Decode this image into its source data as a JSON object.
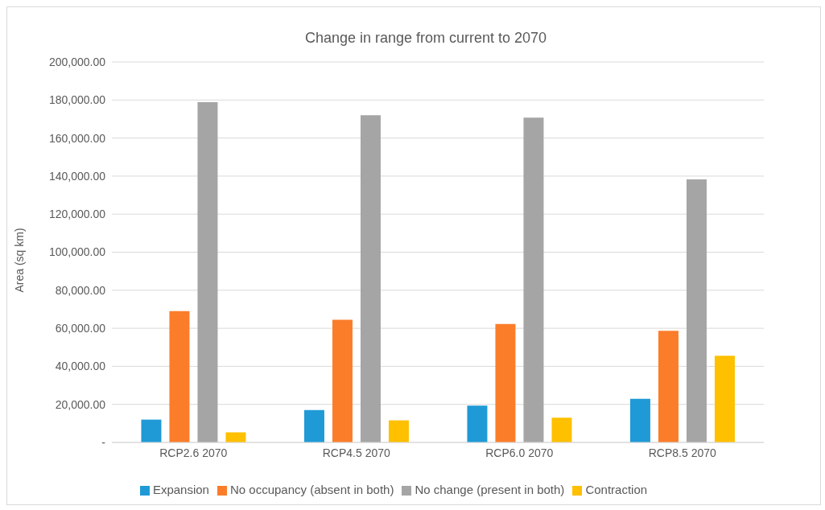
{
  "chart_data": {
    "type": "bar",
    "title": "Change in range from current to 2070",
    "ylabel": "Area (sq km)",
    "categories": [
      "RCP2.6 2070",
      "RCP4.5 2070",
      "RCP6.0 2070",
      "RCP8.5 2070"
    ],
    "series": [
      {
        "name": "Expansion",
        "color": "#1f9ad6",
        "values": [
          12000,
          17000,
          19300,
          22900
        ]
      },
      {
        "name": "No occupancy (absent in both)",
        "color": "#fb7d2a",
        "values": [
          69000,
          64500,
          62300,
          58700
        ]
      },
      {
        "name": "No change (present in both)",
        "color": "#a5a5a5",
        "values": [
          178900,
          172000,
          170700,
          138300
        ]
      },
      {
        "name": "Contraction",
        "color": "#ffc000",
        "values": [
          5300,
          11600,
          13000,
          45600
        ]
      }
    ],
    "ylim": [
      0,
      200000
    ],
    "yticks": [
      {
        "value": 0,
        "label": "-"
      },
      {
        "value": 20000,
        "label": "20,000.00"
      },
      {
        "value": 40000,
        "label": "40,000.00"
      },
      {
        "value": 60000,
        "label": "60,000.00"
      },
      {
        "value": 80000,
        "label": "80,000.00"
      },
      {
        "value": 100000,
        "label": "100,000.00"
      },
      {
        "value": 120000,
        "label": "120,000.00"
      },
      {
        "value": 140000,
        "label": "140,000.00"
      },
      {
        "value": 160000,
        "label": "160,000.00"
      },
      {
        "value": 180000,
        "label": "180,000.00"
      },
      {
        "value": 200000,
        "label": "200,000.00"
      }
    ],
    "grid": "y",
    "legend": "bottom"
  }
}
